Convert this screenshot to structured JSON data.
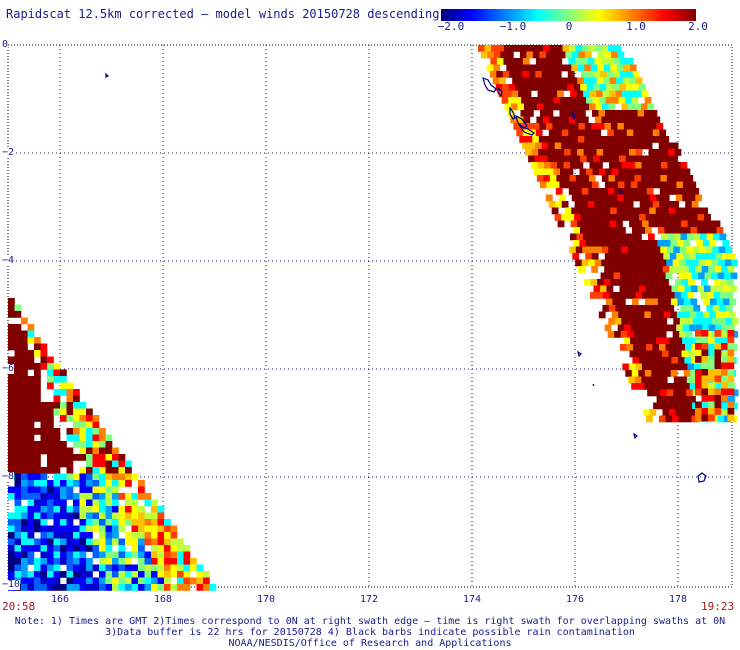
{
  "title": "Rapidscat 12.5km corrected — model winds 20150728 descending",
  "colorbar": {
    "ticks": [
      "−2.0",
      "−1.0",
      "0",
      "1.0",
      "2.0"
    ],
    "range": [
      -2.0,
      2.0
    ],
    "colors": [
      "#000080",
      "#0000ff",
      "#0080ff",
      "#00ffff",
      "#80ff80",
      "#ffff00",
      "#ff8000",
      "#ff0000",
      "#800000"
    ]
  },
  "map": {
    "lon_range": [
      165,
      179
    ],
    "lat_range": [
      -10,
      0
    ],
    "lat_labels": [
      "0",
      "−2",
      "−4",
      "−6",
      "−8",
      "−10"
    ],
    "lon_labels": [
      "166",
      "168",
      "170",
      "172",
      "174",
      "176",
      "178"
    ],
    "grid": "dotted"
  },
  "times": {
    "left": "20:58",
    "right": "19:23"
  },
  "notes": [
    "Note: 1) Times are GMT 2)Times correspond to 0N at right swath edge — time is right swath for overlapping swaths at 0N",
    "3)Data buffer is 22 hrs for 20150728 4) Black barbs indicate possible rain contamination",
    "NOAA/NESDIS/Office of Research and Applications"
  ]
}
